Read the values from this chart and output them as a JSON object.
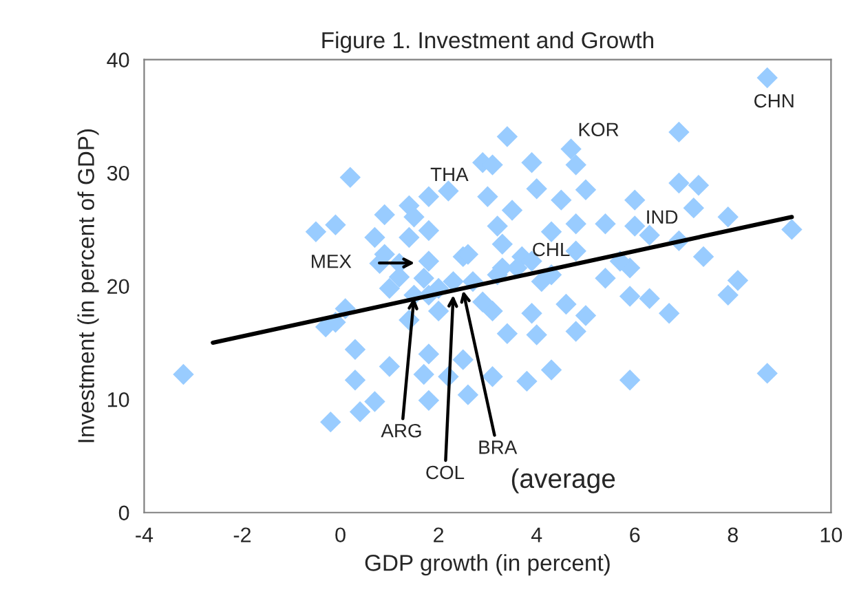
{
  "chart_data": {
    "type": "scatter",
    "title": "Figure 1. Investment and Growth",
    "xlabel": "GDP growth (in percent)",
    "ylabel": "Investment (in percent of GDP)",
    "xlim": [
      -4,
      10
    ],
    "ylim": [
      0,
      40
    ],
    "xticks": [
      -4,
      -2,
      0,
      2,
      4,
      6,
      8,
      10
    ],
    "yticks": [
      0,
      10,
      20,
      30,
      40
    ],
    "grid": false,
    "legend": false,
    "series": [
      {
        "type": "scatter",
        "marker": "diamond",
        "color": "#99ccff",
        "x": [
          -3.2,
          -0.3,
          -0.1,
          0.1,
          0.3,
          0.3,
          1.0,
          0.7,
          0.4,
          -0.2,
          1.8,
          1.8,
          1.7,
          2.2,
          2.5,
          2.6,
          1.4,
          1.0,
          2.0,
          3.1,
          3.8,
          4.3,
          5.9,
          8.7,
          5.9,
          6.3,
          6.7,
          7.9,
          8.1,
          4.8,
          5.0,
          4.0,
          3.4,
          4.6,
          3.9,
          3.1,
          0.2,
          1.8,
          2.2,
          1.4,
          0.9,
          1.5,
          -0.5,
          -0.1,
          0.7,
          1.4,
          1.8,
          1.8,
          0.8,
          1.2,
          1.7,
          2.5,
          2.9,
          8.7,
          6.9,
          3.4,
          4.7,
          4.8,
          3.1,
          3.9,
          6.9,
          7.3,
          5.0,
          4.0,
          3.0,
          4.5,
          6.0,
          7.2,
          3.5,
          7.9,
          5.4,
          9.2,
          6.0,
          3.2,
          4.3,
          4.8,
          6.3,
          6.9,
          7.4,
          5.4,
          5.9,
          3.7,
          3.3,
          4.8,
          5.7,
          1.2,
          2.0,
          2.7,
          3.2,
          3.6,
          2.3,
          1.5,
          2.9,
          1.8,
          3.3,
          3.9,
          4.3,
          4.1,
          2.6,
          0.9
        ],
        "values": [
          12.2,
          16.4,
          16.8,
          18.0,
          14.4,
          11.7,
          12.9,
          9.8,
          8.9,
          8.0,
          9.9,
          14.0,
          12.2,
          12.0,
          13.5,
          10.4,
          17.0,
          19.8,
          17.8,
          12.0,
          11.6,
          12.6,
          11.7,
          12.3,
          19.1,
          18.9,
          17.6,
          19.2,
          20.5,
          16.0,
          17.4,
          15.7,
          15.8,
          18.4,
          17.6,
          17.8,
          29.6,
          27.9,
          28.4,
          27.1,
          26.3,
          26.1,
          24.8,
          25.4,
          24.3,
          24.3,
          24.9,
          22.2,
          22.0,
          20.8,
          20.7,
          22.6,
          30.9,
          38.4,
          33.6,
          33.2,
          32.1,
          30.7,
          30.7,
          30.9,
          29.1,
          28.9,
          28.5,
          28.6,
          27.9,
          27.6,
          27.6,
          26.9,
          26.7,
          26.1,
          25.5,
          25.0,
          25.3,
          25.3,
          24.8,
          25.5,
          24.5,
          24.0,
          22.6,
          20.7,
          21.6,
          22.6,
          23.7,
          23.1,
          22.2,
          22.0,
          19.8,
          20.4,
          21.0,
          21.6,
          20.4,
          19.2,
          18.6,
          19.2,
          21.6,
          22.2,
          21.0,
          20.4,
          22.8,
          22.8
        ]
      },
      {
        "type": "line",
        "color": "#000000",
        "x": [
          -2.6,
          9.2
        ],
        "values": [
          15.0,
          26.1
        ]
      }
    ],
    "annotations": [
      {
        "text": "CHN",
        "x": 8.7,
        "y": 38.4
      },
      {
        "text": "KOR",
        "x": 4.7,
        "y": 32.1
      },
      {
        "text": "THA",
        "x": 1.8,
        "y": 27.9
      },
      {
        "text": "IND",
        "x": 6.3,
        "y": 24.5
      },
      {
        "text": "CHL",
        "x": 3.9,
        "y": 22.6
      },
      "MEX",
      {
        "text": "ARG",
        "x": 1.5,
        "y": 19.0
      },
      {
        "text": "COL",
        "x": 2.3,
        "y": 19.2
      },
      {
        "text": "BRA",
        "x": 2.5,
        "y": 19.6
      },
      "(average"
    ]
  }
}
